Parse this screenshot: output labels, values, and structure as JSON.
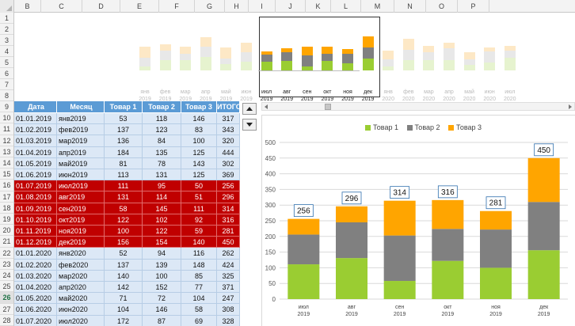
{
  "columns": [
    "B",
    "C",
    "D",
    "E",
    "F",
    "G",
    "H",
    "I",
    "J",
    "K",
    "L",
    "M",
    "N",
    "O",
    "P"
  ],
  "rows": [
    "1",
    "2",
    "3",
    "4",
    "5",
    "6",
    "7",
    "8",
    "9",
    "10",
    "11",
    "12",
    "13",
    "14",
    "15",
    "16",
    "17",
    "18",
    "19",
    "20",
    "21",
    "22",
    "23",
    "24",
    "25",
    "26",
    "27",
    "28"
  ],
  "selected_row": "26",
  "colors": {
    "product1": "#9acd32",
    "product2": "#808080",
    "product3": "#ffa500",
    "table_header": "#5b9bd5",
    "row_normal": "#dce8f6",
    "row_highlight": "#c00000"
  },
  "table": {
    "headers": [
      "Дата",
      "Месяц",
      "Товар 1",
      "Товар 2",
      "Товар 3",
      "ИТОГО"
    ],
    "rows": [
      {
        "date": "01.01.2019",
        "month": "янв2019",
        "p1": "53",
        "p2": "118",
        "p3": "146",
        "total": "317",
        "hl": false
      },
      {
        "date": "01.02.2019",
        "month": "фев2019",
        "p1": "137",
        "p2": "123",
        "p3": "83",
        "total": "343",
        "hl": false
      },
      {
        "date": "01.03.2019",
        "month": "мар2019",
        "p1": "136",
        "p2": "84",
        "p3": "100",
        "total": "320",
        "hl": false
      },
      {
        "date": "01.04.2019",
        "month": "апр2019",
        "p1": "184",
        "p2": "135",
        "p3": "125",
        "total": "444",
        "hl": false
      },
      {
        "date": "01.05.2019",
        "month": "май2019",
        "p1": "81",
        "p2": "78",
        "p3": "143",
        "total": "302",
        "hl": false
      },
      {
        "date": "01.06.2019",
        "month": "июн2019",
        "p1": "113",
        "p2": "131",
        "p3": "125",
        "total": "369",
        "hl": false
      },
      {
        "date": "01.07.2019",
        "month": "июл2019",
        "p1": "111",
        "p2": "95",
        "p3": "50",
        "total": "256",
        "hl": true
      },
      {
        "date": "01.08.2019",
        "month": "авг2019",
        "p1": "131",
        "p2": "114",
        "p3": "51",
        "total": "296",
        "hl": true
      },
      {
        "date": "01.09.2019",
        "month": "сен2019",
        "p1": "58",
        "p2": "145",
        "p3": "111",
        "total": "314",
        "hl": true
      },
      {
        "date": "01.10.2019",
        "month": "окт2019",
        "p1": "122",
        "p2": "102",
        "p3": "92",
        "total": "316",
        "hl": true
      },
      {
        "date": "01.11.2019",
        "month": "ноя2019",
        "p1": "100",
        "p2": "122",
        "p3": "59",
        "total": "281",
        "hl": true
      },
      {
        "date": "01.12.2019",
        "month": "дек2019",
        "p1": "156",
        "p2": "154",
        "p3": "140",
        "total": "450",
        "hl": true
      },
      {
        "date": "01.01.2020",
        "month": "янв2020",
        "p1": "52",
        "p2": "94",
        "p3": "116",
        "total": "262",
        "hl": false
      },
      {
        "date": "01.02.2020",
        "month": "фев2020",
        "p1": "137",
        "p2": "139",
        "p3": "148",
        "total": "424",
        "hl": false
      },
      {
        "date": "01.03.2020",
        "month": "мар2020",
        "p1": "140",
        "p2": "100",
        "p3": "85",
        "total": "325",
        "hl": false
      },
      {
        "date": "01.04.2020",
        "month": "апр2020",
        "p1": "142",
        "p2": "152",
        "p3": "77",
        "total": "371",
        "hl": false
      },
      {
        "date": "01.05.2020",
        "month": "май2020",
        "p1": "71",
        "p2": "72",
        "p3": "104",
        "total": "247",
        "hl": false
      },
      {
        "date": "01.06.2020",
        "month": "июн2020",
        "p1": "104",
        "p2": "146",
        "p3": "58",
        "total": "308",
        "hl": false
      },
      {
        "date": "01.07.2020",
        "month": "июл2020",
        "p1": "172",
        "p2": "87",
        "p3": "69",
        "total": "328",
        "hl": false
      }
    ]
  },
  "mini_chart": {
    "months": [
      "янв",
      "фев",
      "мар",
      "апр",
      "май",
      "июн",
      "июл",
      "авг",
      "сен",
      "окт",
      "ноя",
      "дек",
      "янв",
      "фев",
      "мар",
      "апр",
      "май",
      "июн",
      "июл"
    ],
    "years": [
      "2019",
      "2019",
      "2019",
      "2019",
      "2019",
      "2019",
      "2019",
      "2019",
      "2019",
      "2019",
      "2019",
      "2019",
      "2020",
      "2020",
      "2020",
      "2020",
      "2020",
      "2020",
      "2020"
    ],
    "window": [
      6,
      11
    ]
  },
  "chart_data": {
    "type": "bar",
    "stacked": true,
    "categories": [
      "июл 2019",
      "авг 2019",
      "сен 2019",
      "окт 2019",
      "ноя 2019",
      "дек 2019"
    ],
    "category_month": [
      "июл",
      "авг",
      "сен",
      "окт",
      "ноя",
      "дек"
    ],
    "category_year": [
      "2019",
      "2019",
      "2019",
      "2019",
      "2019",
      "2019"
    ],
    "series": [
      {
        "name": "Товар 1",
        "values": [
          111,
          131,
          58,
          122,
          100,
          156
        ]
      },
      {
        "name": "Товар 2",
        "values": [
          95,
          114,
          145,
          102,
          122,
          154
        ]
      },
      {
        "name": "Товар 3",
        "values": [
          50,
          51,
          111,
          92,
          59,
          140
        ]
      }
    ],
    "totals": [
      256,
      296,
      314,
      316,
      281,
      450
    ],
    "yticks": [
      "0",
      "50",
      "100",
      "150",
      "200",
      "250",
      "300",
      "350",
      "400",
      "450",
      "500"
    ],
    "ylim": [
      0,
      500
    ],
    "grid": true,
    "legend": "top-center"
  }
}
